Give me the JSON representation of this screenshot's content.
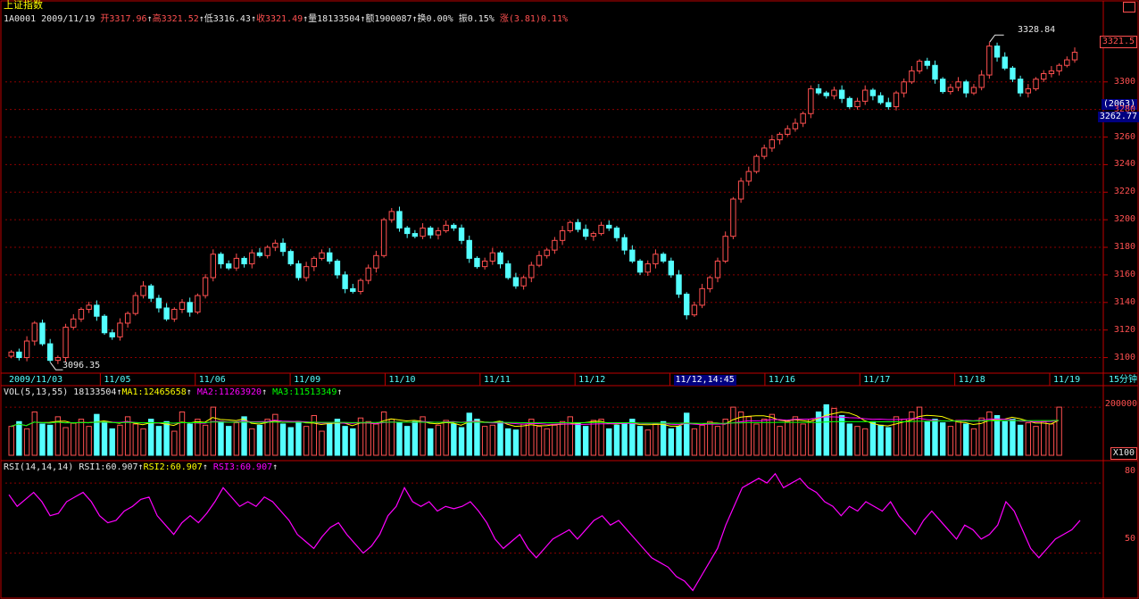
{
  "header": {
    "title": "上证指数",
    "code": "1A0001",
    "date": "2009/11/19",
    "open_label": "开",
    "open": "3317.96",
    "high_label": "高",
    "high": "3321.52",
    "low_label": "低",
    "low": "3316.43",
    "close_label": "收",
    "close": "3321.49",
    "volume_label": "量",
    "volume": "18133504",
    "amount_label": "额",
    "amount": "1900087",
    "turnover_label": "换",
    "turnover": "0.00%",
    "amplitude_label": "振",
    "amplitude": "0.15%",
    "change_label": "涨",
    "change": "(3.81)0.11%",
    "arrow": "↑"
  },
  "price_panel": {
    "current_price_tag": "3321.5",
    "crosshair_count": "(2063)",
    "crosshair_price": "3262.77",
    "max_annotation": "3328.84",
    "min_annotation": "3096.35",
    "period_label": "15分钟"
  },
  "volume_panel": {
    "label": "VOL(5,13,55)",
    "value": "18133504",
    "ma1_label": "MA1:",
    "ma1": "12465658",
    "ma2_label": "MA2:",
    "ma2": "11263920",
    "ma3_label": "MA3:",
    "ma3": "11513349",
    "arrow": "↑",
    "multiplier": "X100"
  },
  "rsi_panel": {
    "label": "RSI(14,14,14)",
    "rsi1_label": "RSI1:",
    "rsi1": "60.907",
    "rsi2_label": "RSI2:",
    "rsi2": "60.907",
    "rsi3_label": "RSI3:",
    "rsi3": "60.907",
    "arrow": "↑"
  },
  "colors": {
    "up": "#ff5050",
    "down": "#54ffff",
    "ma1": "#ffff00",
    "ma2": "#ff00ff",
    "ma3": "#00ff00",
    "rsi": "#ff00ff",
    "frame": "#c00000",
    "grid": "#8b0000"
  },
  "chart_data": {
    "type": "candlestick",
    "x_labels": [
      "2009/11/03",
      "11/05",
      "11/06",
      "11/09",
      "11/10",
      "11/11",
      "11/12",
      "11/12,14:45",
      "11/16",
      "11/17",
      "11/18",
      "11/19"
    ],
    "price_axis_ticks": [
      3100,
      3120,
      3140,
      3160,
      3180,
      3200,
      3220,
      3240,
      3260,
      3280,
      3300
    ],
    "price_range": [
      3090,
      3340
    ],
    "volume_axis_ticks": [
      200000
    ],
    "volume_range": [
      0,
      230000
    ],
    "rsi_axis_ticks": [
      50,
      80
    ],
    "rsi_range": [
      31.5,
      85
    ],
    "price_path": [
      3104,
      3100,
      3112,
      3125,
      3110,
      3098,
      3100,
      3122,
      3128,
      3135,
      3138,
      3130,
      3118,
      3115,
      3125,
      3132,
      3145,
      3152,
      3143,
      3136,
      3128,
      3135,
      3140,
      3133,
      3145,
      3158,
      3175,
      3168,
      3165,
      3172,
      3168,
      3176,
      3174,
      3180,
      3183,
      3177,
      3168,
      3158,
      3166,
      3172,
      3176,
      3170,
      3160,
      3150,
      3148,
      3156,
      3165,
      3174,
      3200,
      3206,
      3194,
      3190,
      3188,
      3194,
      3189,
      3192,
      3196,
      3194,
      3185,
      3172,
      3166,
      3170,
      3176,
      3168,
      3158,
      3152,
      3158,
      3167,
      3174,
      3178,
      3185,
      3192,
      3198,
      3193,
      3188,
      3190,
      3196,
      3194,
      3187,
      3178,
      3170,
      3162,
      3168,
      3175,
      3170,
      3160,
      3146,
      3131,
      3138,
      3150,
      3158,
      3170,
      3188,
      3215,
      3228,
      3235,
      3246,
      3252,
      3258,
      3262,
      3266,
      3270,
      3277,
      3295,
      3292,
      3290,
      3294,
      3288,
      3282,
      3286,
      3294,
      3290,
      3285,
      3282,
      3292,
      3300,
      3308,
      3315,
      3312,
      3302,
      3293,
      3296,
      3300,
      3292,
      3296,
      3305,
      3326,
      3318,
      3310,
      3302,
      3292,
      3295,
      3302,
      3306,
      3308,
      3312,
      3316,
      3321.49
    ],
    "price_high": 3328.84,
    "price_low": 3096.35,
    "rsi_path": [
      75,
      70,
      73,
      76,
      72,
      66,
      67,
      72,
      74,
      76,
      72,
      66,
      63,
      64,
      68,
      70,
      73,
      74,
      66,
      62,
      58,
      63,
      66,
      63,
      67,
      72,
      78,
      74,
      70,
      72,
      70,
      74,
      72,
      68,
      64,
      58,
      55,
      52,
      57,
      61,
      63,
      58,
      54,
      50,
      53,
      58,
      66,
      70,
      78,
      72,
      70,
      72,
      68,
      70,
      69,
      70,
      72,
      68,
      63,
      56,
      52,
      55,
      58,
      52,
      48,
      52,
      56,
      58,
      60,
      56,
      60,
      64,
      66,
      62,
      64,
      60,
      56,
      52,
      48,
      46,
      44,
      40,
      38,
      34,
      40,
      46,
      52,
      62,
      70,
      78,
      80,
      82,
      80,
      84,
      78,
      80,
      82,
      78,
      76,
      72,
      70,
      66,
      70,
      68,
      72,
      70,
      68,
      72,
      66,
      62,
      58,
      64,
      68,
      64,
      60,
      56,
      62,
      60,
      56,
      58,
      62,
      72,
      68,
      60,
      52,
      48,
      52,
      56,
      58,
      60,
      64
    ],
    "volume_values": [
      120000,
      140000,
      110000,
      180000,
      130000,
      125000,
      160000,
      115000,
      135000,
      150000,
      120000,
      170000,
      140000,
      110000,
      125000,
      160000,
      130000,
      110000,
      150000,
      120000,
      140000,
      100000,
      180000,
      130000,
      150000,
      125000,
      200000,
      140000,
      120000,
      135000,
      160000,
      110000,
      125000,
      150000,
      170000,
      130000,
      115000,
      140000,
      120000,
      165000,
      100000,
      135000,
      150000,
      120000,
      110000,
      155000,
      140000,
      130000,
      180000,
      150000,
      135000,
      120000,
      140000,
      160000,
      110000,
      125000,
      145000,
      130000,
      115000,
      175000,
      150000,
      120000,
      125000,
      140000,
      110000,
      105000,
      130000,
      150000,
      120000,
      110000,
      125000,
      140000,
      160000,
      135000,
      120000,
      145000,
      150000,
      110000,
      125000,
      135000,
      150000,
      120000,
      105000,
      130000,
      140000,
      110000,
      120000,
      175000,
      110000,
      125000,
      140000,
      120000,
      150000,
      200000,
      180000,
      160000,
      130000,
      150000,
      170000,
      120000,
      140000,
      160000,
      130000,
      150000,
      180000,
      210000,
      195000,
      165000,
      130000,
      120000,
      110000,
      140000,
      125000,
      115000,
      160000,
      150000,
      180000,
      200000,
      140000,
      150000,
      135000,
      120000,
      145000,
      130000,
      110000,
      155000,
      180000,
      165000,
      140000,
      150000,
      125000,
      135000,
      120000,
      140000,
      130000,
      200000
    ]
  }
}
